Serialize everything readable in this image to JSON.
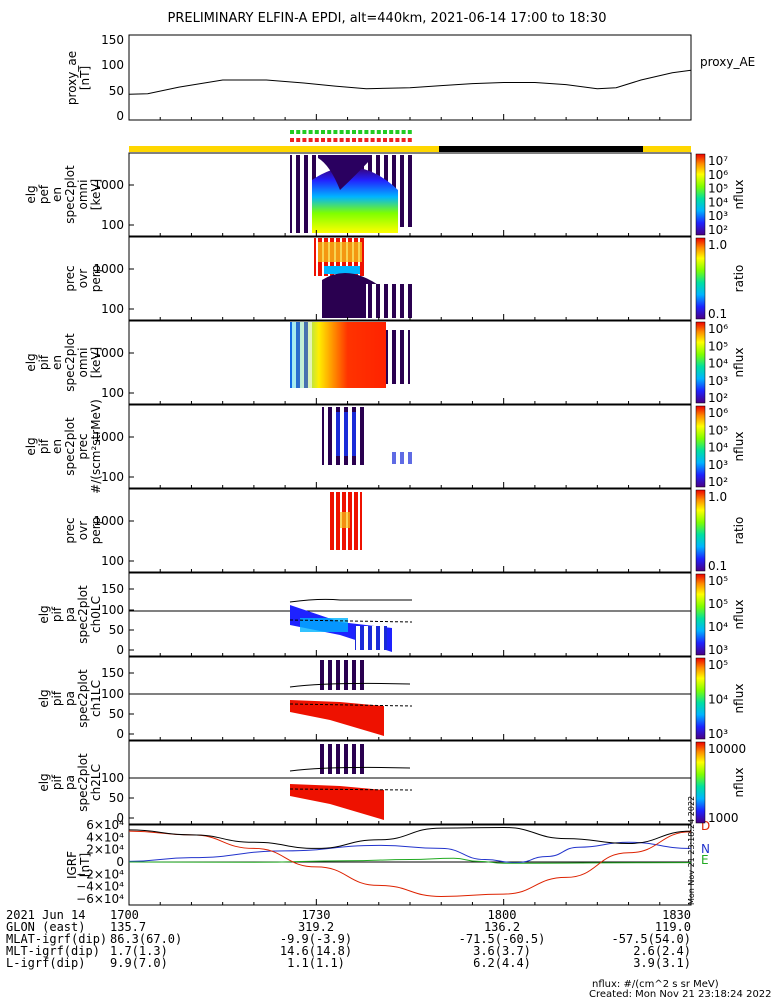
{
  "title": "PRELIMINARY ELFIN-A EPDI, alt=440km, 2021-06-14 17:00 to 18:30",
  "colors": {
    "background": "#ffffff",
    "axes": "#000000",
    "day_bar": "#ffd700",
    "night_bar": "#000000",
    "prec_marker_green": "#22cc22",
    "prec_marker_red": "#ee2222",
    "bx": "#dd2200",
    "by": "#2233cc",
    "bz": "#22aa22",
    "btot": "#000000"
  },
  "chart_data": [
    {
      "type": "line",
      "panel": "proxy_ae",
      "ylabel": [
        "proxy_ae",
        "[nT]"
      ],
      "yticks": [
        "150",
        "100",
        "50",
        "0"
      ],
      "ylim": [
        0,
        150
      ],
      "legend": "proxy_AE",
      "x": [
        0,
        3,
        8,
        15,
        22,
        28,
        33,
        38,
        45,
        50,
        55,
        60,
        65,
        70,
        75,
        78,
        82,
        87,
        90
      ],
      "values": [
        50,
        51,
        64,
        78,
        78,
        72,
        66,
        61,
        63,
        67,
        71,
        73,
        73,
        69,
        61,
        63,
        78,
        92,
        97
      ]
    },
    {
      "type": "heatmap",
      "panel": "elx_pef_en_spec2plot_omni",
      "ylabel": [
        "elg",
        "pef",
        "en",
        "spec2plot",
        "omni",
        "[keV]"
      ],
      "yticks": [
        "1000",
        "100"
      ],
      "colorbar": {
        "label": "nflux",
        "ticks": [
          "10^7",
          "10^6",
          "10^5",
          "10^4",
          "10^3",
          "10^2"
        ]
      }
    },
    {
      "type": "heatmap",
      "panel": "prec_ovr_perp_e",
      "ylabel": [
        "prec",
        "ovr",
        "perp"
      ],
      "yticks": [
        "1000",
        "100"
      ],
      "colorbar": {
        "label": "ratio",
        "ticks": [
          "1.0",
          "0.1"
        ]
      }
    },
    {
      "type": "heatmap",
      "panel": "elx_pif_en_spec2plot_omni",
      "ylabel": [
        "elg",
        "pif",
        "en",
        "spec2plot",
        "omni",
        "[keV]"
      ],
      "yticks": [
        "1000",
        "100"
      ],
      "colorbar": {
        "label": "nflux",
        "ticks": [
          "10^6",
          "10^5",
          "10^4",
          "10^3",
          "10^2"
        ]
      }
    },
    {
      "type": "heatmap",
      "panel": "elx_pif_en_spec2plot_prec",
      "ylabel": [
        "elg",
        "pif",
        "en",
        "spec2plot",
        "prec",
        "#/(scm²strMeV)"
      ],
      "yticks": [
        "1000",
        "100"
      ],
      "colorbar": {
        "label": "nflux",
        "ticks": [
          "10^6",
          "10^5",
          "10^4",
          "10^3",
          "10^2"
        ]
      }
    },
    {
      "type": "heatmap",
      "panel": "prec_ovr_perp_i",
      "ylabel": [
        "prec",
        "ovr",
        "perp"
      ],
      "yticks": [
        "1000",
        "100"
      ],
      "colorbar": {
        "label": "ratio",
        "ticks": [
          "1.0",
          "0.1"
        ]
      }
    },
    {
      "type": "heatmap",
      "panel": "elx_pif_pa_spec2plot_ch0LC",
      "ylabel": [
        "elg",
        "pif",
        "pa",
        "spec2plot",
        "ch0LC"
      ],
      "yticks": [
        "150",
        "100",
        "50",
        "0"
      ],
      "colorbar": {
        "label": "nflux",
        "ticks": [
          "10^5",
          "10^5",
          "10^4",
          "10^3"
        ]
      }
    },
    {
      "type": "heatmap",
      "panel": "elx_pif_pa_spec2plot_ch1LC",
      "ylabel": [
        "elg",
        "pif",
        "pa",
        "spec2plot",
        "ch1LC"
      ],
      "yticks": [
        "150",
        "100",
        "50",
        "0"
      ],
      "colorbar": {
        "label": "nflux",
        "ticks": [
          "10^5",
          "10^4",
          "10^3"
        ]
      }
    },
    {
      "type": "heatmap",
      "panel": "elx_pif_pa_spec2plot_ch2LC",
      "ylabel": [
        "elg",
        "pif",
        "pa",
        "spec2plot",
        "ch2LC"
      ],
      "yticks": [
        "100",
        "50",
        "0"
      ],
      "colorbar": {
        "label": "nflux",
        "ticks": [
          "10000",
          "1000"
        ]
      }
    },
    {
      "type": "line",
      "panel": "igrf",
      "ylabel": [
        "IGRF",
        "[nT]"
      ],
      "yticks": [
        "6×10⁴",
        "4×10⁴",
        "2×10⁴",
        "0",
        "−2×10⁴",
        "−4×10⁴",
        "−6×10⁴"
      ],
      "ylim": [
        -60000,
        60000
      ],
      "series": [
        {
          "name": "N",
          "color": "#2233cc",
          "x": [
            0,
            10,
            25,
            40,
            50,
            57,
            62,
            67,
            72,
            80,
            90
          ],
          "values": [
            1000,
            7000,
            18000,
            27000,
            22000,
            4000,
            -1000,
            9000,
            24000,
            32000,
            22000
          ]
        },
        {
          "name": "E",
          "color": "#22aa22",
          "x": [
            0,
            20,
            35,
            45,
            52,
            56,
            60,
            65,
            75,
            90
          ],
          "values": [
            0,
            -500,
            2000,
            4000,
            6000,
            1000,
            -2000,
            -2000,
            -1500,
            -1000
          ]
        },
        {
          "name": "D",
          "color": "#dd2200",
          "x": [
            0,
            10,
            20,
            30,
            40,
            50,
            60,
            70,
            80,
            90
          ],
          "values": [
            50000,
            44000,
            22000,
            -8000,
            -38000,
            -56000,
            -52000,
            -25000,
            15000,
            49000
          ]
        },
        {
          "name": "",
          "color": "#000000",
          "x": [
            0,
            10,
            20,
            30,
            40,
            50,
            60,
            70,
            80,
            90
          ],
          "values": [
            52000,
            44000,
            32000,
            22000,
            36000,
            55000,
            56000,
            38000,
            30000,
            50000
          ]
        }
      ]
    }
  ],
  "ephemeris": {
    "rows": [
      {
        "label": "2021 Jun 14",
        "values": [
          "1700",
          "1730",
          "1800",
          "1830"
        ]
      },
      {
        "label": "GLON (east)",
        "values": [
          "135.7",
          "319.2",
          "136.2",
          "119.0"
        ]
      },
      {
        "label": "MLAT-igrf(dip)",
        "values": [
          "86.3(67.0)",
          "-9.9(-3.9)",
          "-71.5(-60.5)",
          "-57.5(54.0)"
        ]
      },
      {
        "label": "MLT-igrf(dip)",
        "values": [
          "1.7(1.3)",
          "14.6(14.8)",
          "3.6(3.7)",
          "2.6(2.4)"
        ]
      },
      {
        "label": "L-igrf(dip)",
        "values": [
          "9.9(7.0)",
          "1.1(1.1)",
          "6.2(4.4)",
          "3.9(3.1)"
        ]
      }
    ]
  },
  "footer": {
    "units_note": "nflux: #/(cm^2 s sr MeV)",
    "created": "Created: Mon Nov 21 23:18:24 2022",
    "side_stamp": "Mon Nov 21 23:18:24 2022"
  }
}
